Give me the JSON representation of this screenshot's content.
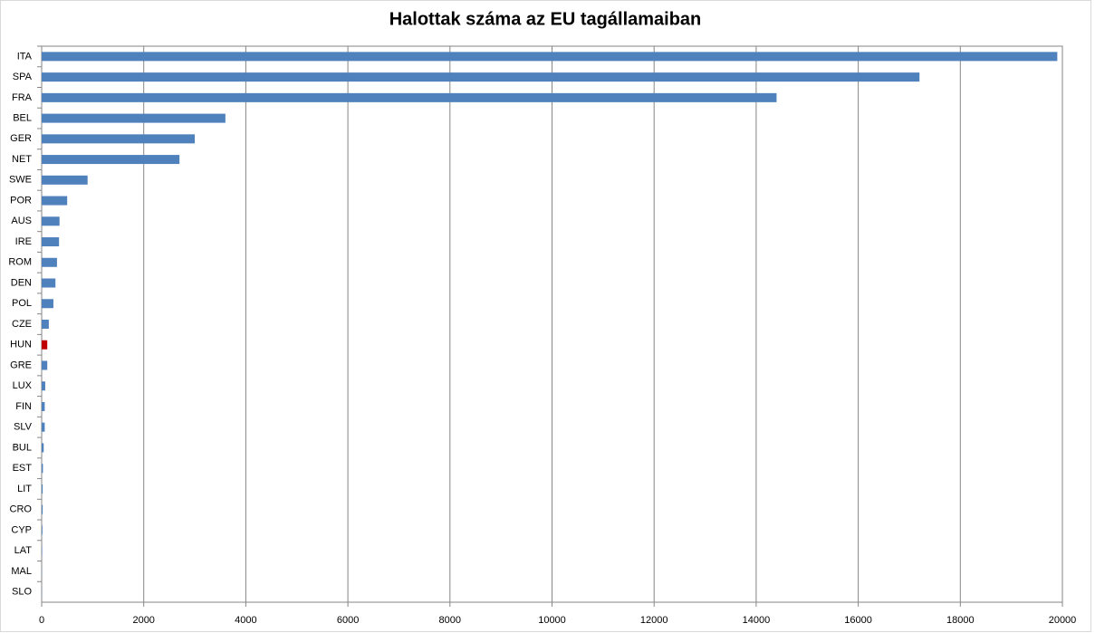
{
  "chart_data": {
    "type": "hbar",
    "title": "Halottak száma az EU tagállamaiban",
    "categories": [
      "ITA",
      "SPA",
      "FRA",
      "BEL",
      "GER",
      "NET",
      "SWE",
      "POR",
      "AUS",
      "IRE",
      "ROM",
      "DEN",
      "POL",
      "CZE",
      "HUN",
      "GRE",
      "LUX",
      "FIN",
      "SLV",
      "BUL",
      "EST",
      "LIT",
      "CRO",
      "CYP",
      "LAT",
      "MAL",
      "SLO"
    ],
    "values": [
      19900,
      17200,
      14400,
      3600,
      3000,
      2700,
      900,
      500,
      350,
      340,
      300,
      270,
      230,
      140,
      110,
      110,
      70,
      60,
      60,
      40,
      25,
      20,
      20,
      15,
      10,
      5,
      5
    ],
    "colors": [
      "#4f81bd",
      "#4f81bd",
      "#4f81bd",
      "#4f81bd",
      "#4f81bd",
      "#4f81bd",
      "#4f81bd",
      "#4f81bd",
      "#4f81bd",
      "#4f81bd",
      "#4f81bd",
      "#4f81bd",
      "#4f81bd",
      "#4f81bd",
      "#c00000",
      "#4f81bd",
      "#4f81bd",
      "#4f81bd",
      "#4f81bd",
      "#4f81bd",
      "#4f81bd",
      "#4f81bd",
      "#4f81bd",
      "#4f81bd",
      "#4f81bd",
      "#4f81bd",
      "#4f81bd"
    ],
    "xlim": [
      0,
      20000
    ],
    "xticks": [
      0,
      2000,
      4000,
      6000,
      8000,
      10000,
      12000,
      14000,
      16000,
      18000,
      20000
    ],
    "grid": true
  }
}
